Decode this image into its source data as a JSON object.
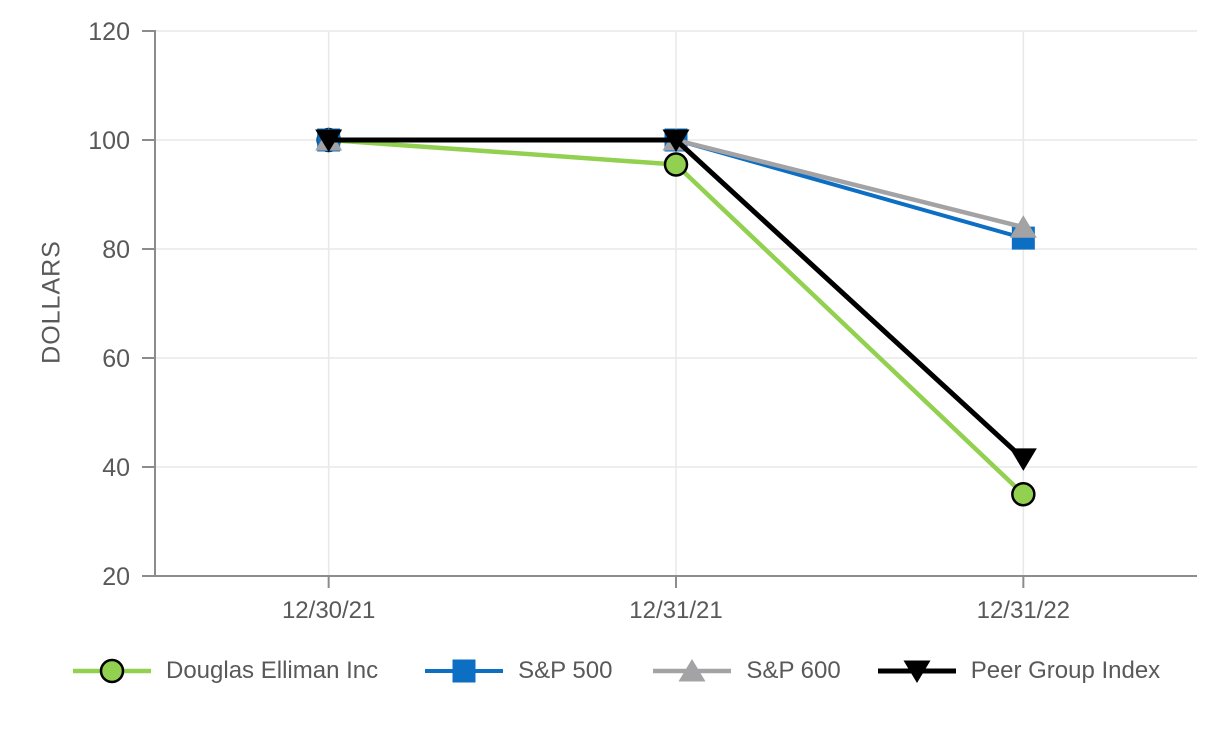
{
  "page": {
    "background_color": "#ffffff",
    "text_color": "#595959"
  },
  "chart_data": {
    "type": "line",
    "title": "",
    "xlabel": "",
    "ylabel": "DOLLARS",
    "categories": [
      "12/30/21",
      "12/31/21",
      "12/31/22"
    ],
    "y_ticks": [
      120,
      100,
      80,
      60,
      40,
      20
    ],
    "ylim": [
      20,
      120
    ],
    "grid": true,
    "legend_position": "bottom",
    "axis_text_color": "#595959",
    "axis_line_color": "#8c8c8c",
    "grid_color": "#e9e9e9",
    "series": [
      {
        "name": "Douglas Elliman Inc",
        "values": [
          100,
          95.5,
          35
        ],
        "color": "#92d050",
        "marker": "circle",
        "marker_fill": "#92d050",
        "marker_stroke": "#000000",
        "line_width": 4.5
      },
      {
        "name": "S&P 500",
        "values": [
          100,
          100,
          82
        ],
        "color": "#0d6fc4",
        "marker": "square",
        "marker_fill": "#0d6fc4",
        "line_width": 4
      },
      {
        "name": "S&P 600",
        "values": [
          100,
          100,
          84
        ],
        "color": "#a3a3a5",
        "marker": "triangle-up",
        "marker_fill": "#a3a3a5",
        "line_width": 4.5
      },
      {
        "name": "Peer Group Index",
        "values": [
          100,
          100,
          41.5
        ],
        "color": "#000000",
        "marker": "triangle-down",
        "marker_fill": "#000000",
        "line_width": 5
      }
    ]
  }
}
